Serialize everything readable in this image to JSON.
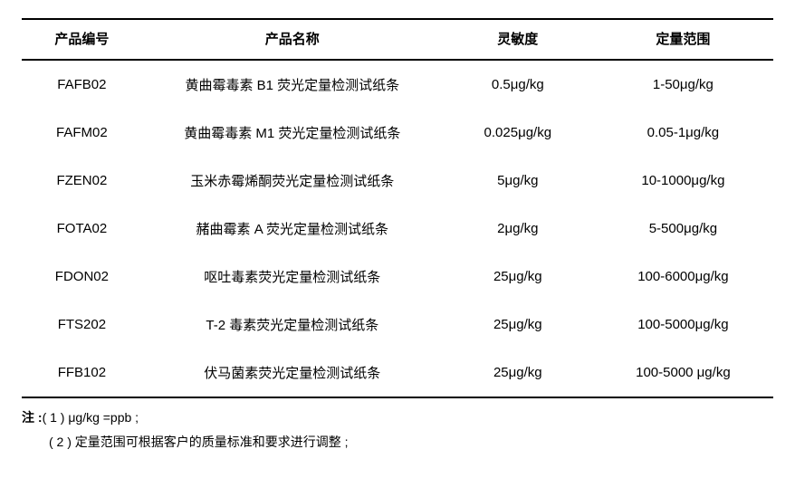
{
  "table": {
    "columns": [
      {
        "key": "code",
        "label": "产品编号",
        "width": "16%"
      },
      {
        "key": "name",
        "label": "产品名称",
        "width": "40%"
      },
      {
        "key": "sensitivity",
        "label": "灵敏度",
        "width": "20%"
      },
      {
        "key": "range",
        "label": "定量范围",
        "width": "24%"
      }
    ],
    "rows": [
      {
        "code": "FAFB02",
        "name": "黄曲霉毒素 B1 荧光定量检测试纸条",
        "sensitivity": "0.5μg/kg",
        "range": "1-50μg/kg"
      },
      {
        "code": "FAFM02",
        "name": "黄曲霉毒素 M1 荧光定量检测试纸条",
        "sensitivity": "0.025μg/kg",
        "range": "0.05-1μg/kg"
      },
      {
        "code": "FZEN02",
        "name": "玉米赤霉烯酮荧光定量检测试纸条",
        "sensitivity": "5μg/kg",
        "range": "10-1000μg/kg"
      },
      {
        "code": "FOTA02",
        "name": "赭曲霉素 A 荧光定量检测试纸条",
        "sensitivity": "2μg/kg",
        "range": "5-500μg/kg"
      },
      {
        "code": "FDON02",
        "name": "呕吐毒素荧光定量检测试纸条",
        "sensitivity": "25μg/kg",
        "range": "100-6000μg/kg"
      },
      {
        "code": "FTS202",
        "name": "T-2 毒素荧光定量检测试纸条",
        "sensitivity": "25μg/kg",
        "range": "100-5000μg/kg"
      },
      {
        "code": "FFB102",
        "name": "伏马菌素荧光定量检测试纸条",
        "sensitivity": "25μg/kg",
        "range": "100-5000 μg/kg"
      }
    ],
    "header_fontsize": 15,
    "cell_fontsize": 15,
    "border_color": "#000000",
    "background_color": "#ffffff"
  },
  "notes": {
    "label": "注 :",
    "items": [
      "( 1 ) μg/kg =ppb ;",
      "( 2 ) 定量范围可根据客户的质量标准和要求进行调整 ;"
    ]
  }
}
